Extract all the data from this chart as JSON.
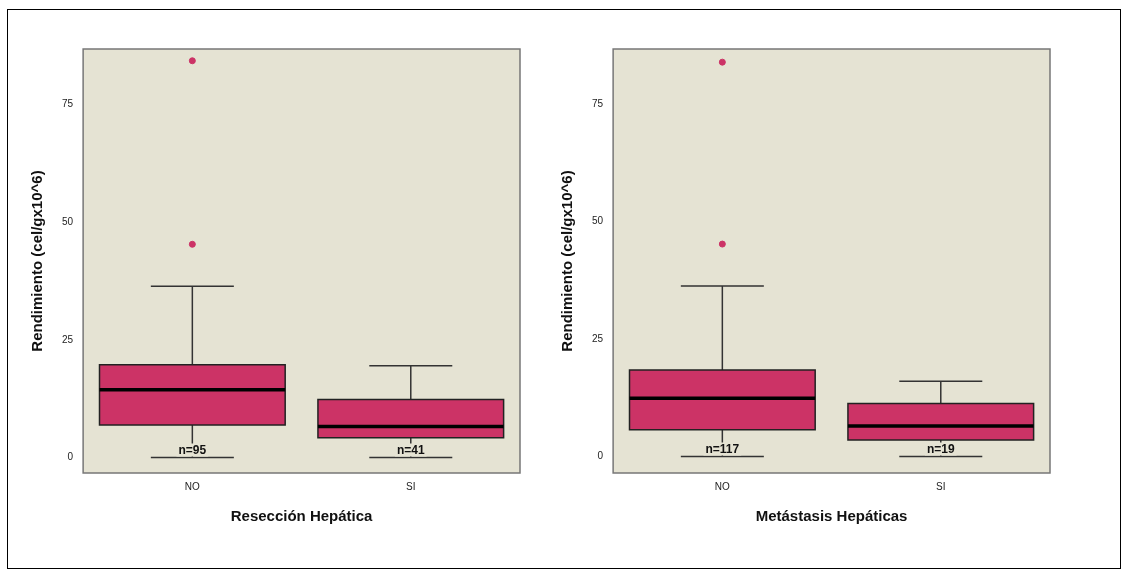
{
  "chart_data": [
    {
      "type": "box",
      "xlabel": "Resección Hepática",
      "ylabel": "Rendimiento (cel/gx10^6)",
      "categories": [
        "NO",
        "SI"
      ],
      "color": "#cc3366",
      "boxes": [
        {
          "low": 0,
          "q1": 6.9,
          "median": 14.4,
          "q3": 19.7,
          "high": 36.4,
          "outliers": [
            45.3,
            84.3
          ]
        },
        {
          "low": 0,
          "q1": 4.2,
          "median": 6.6,
          "q3": 12.3,
          "high": 19.5
        }
      ],
      "ylim": [
        -3.3,
        86.8
      ],
      "yticks": [
        0,
        25,
        50,
        75
      ],
      "annotations": [
        {
          "text": "n=95",
          "x": "NO",
          "y": 1.5
        },
        {
          "text": "n=41",
          "x": "SI",
          "y": 1.5
        }
      ]
    },
    {
      "type": "box",
      "xlabel": "Metástasis Hepáticas",
      "ylabel": "Rendimiento (cel/gx10^6)",
      "categories": [
        "NO",
        "SI"
      ],
      "color": "#cc3366",
      "boxes": [
        {
          "low": 0,
          "q1": 5.7,
          "median": 12.4,
          "q3": 18.4,
          "high": 36.3,
          "outliers": [
            45.2,
            83.9
          ]
        },
        {
          "low": 0,
          "q1": 3.5,
          "median": 6.5,
          "q3": 11.3,
          "high": 16.0
        }
      ],
      "ylim": [
        -3.5,
        86.7
      ],
      "yticks": [
        0,
        25,
        50,
        75
      ],
      "annotations": [
        {
          "text": "n=117",
          "x": "NO",
          "y": 1.5
        },
        {
          "text": "n=19",
          "x": "SI",
          "y": 1.5
        }
      ]
    }
  ]
}
